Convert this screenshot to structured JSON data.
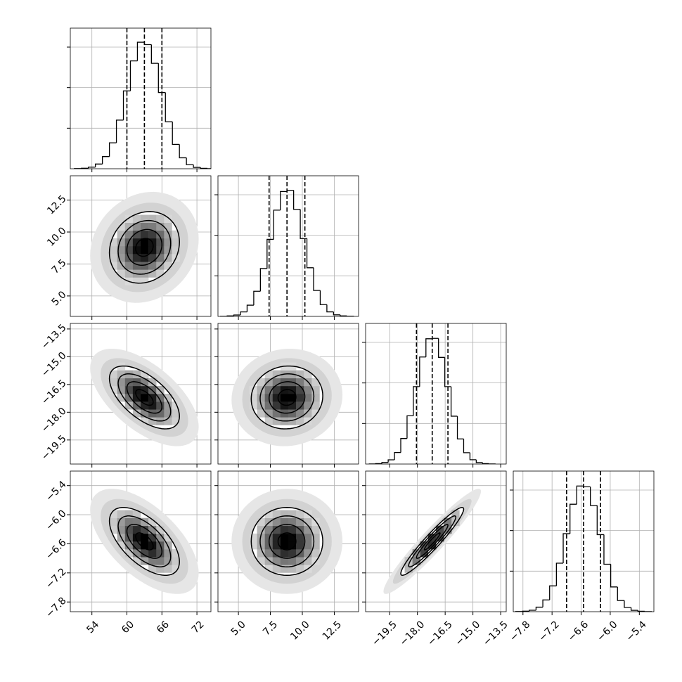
{
  "chart_data": {
    "type": "corner",
    "grid": true,
    "contour_levels": [
      0.5,
      1,
      1.5,
      2
    ],
    "hist_ylim": [
      0,
      1734
    ],
    "hist_yticks": [
      500,
      1000,
      1500
    ],
    "parameters": [
      {
        "range": [
          50.3,
          74.4
        ],
        "ticks": [
          54,
          60,
          66,
          72
        ],
        "mean": 63,
        "sigma": 3,
        "bins": [
          51,
          52.2,
          53.4,
          54.6,
          55.8,
          57,
          58.2,
          59.4,
          60.6,
          61.8,
          63,
          64.2,
          65.4,
          66.6,
          67.8,
          69,
          70.2,
          71.4,
          72.6,
          73.8,
          75
        ],
        "counts": [
          2,
          6,
          20,
          58,
          150,
          320,
          600,
          960,
          1330,
          1560,
          1530,
          1300,
          940,
          580,
          300,
          135,
          50,
          17,
          5,
          1
        ],
        "quantiles": [
          60,
          63,
          66
        ]
      },
      {
        "range": [
          3.4,
          14.4
        ],
        "ticks": [
          {
            "value": 5,
            "label": "5.0"
          },
          7.5,
          {
            "value": 10,
            "label": "10.0"
          },
          12.5
        ],
        "mean": 8.8,
        "sigma": 1.4,
        "bins": [
          3.6,
          4.12,
          4.64,
          5.16,
          5.68,
          6.2,
          6.72,
          7.24,
          7.76,
          8.28,
          8.8,
          9.32,
          9.84,
          10.36,
          10.88,
          11.4,
          11.92,
          12.44,
          12.96,
          13.48,
          14.0
        ],
        "counts": [
          1,
          6,
          17,
          55,
          138,
          310,
          590,
          950,
          1310,
          1540,
          1555,
          1320,
          960,
          600,
          320,
          145,
          56,
          19,
          6,
          2
        ],
        "quantiles": [
          7.4,
          8.8,
          10.2
        ]
      },
      {
        "range": [
          -20.8,
          -13.2
        ],
        "ticks": [
          {
            "value": -19.5,
            "label": "−19.5"
          },
          {
            "value": -18,
            "label": "−18.0"
          },
          {
            "value": -16.5,
            "label": "−16.5"
          },
          {
            "value": -15,
            "label": "−15.0"
          },
          {
            "value": -13.5,
            "label": "−13.5"
          }
        ],
        "mean": -17.2,
        "sigma": 0.85,
        "bins": [
          -20.6,
          -20.26,
          -19.92,
          -19.58,
          -19.24,
          -18.9,
          -18.56,
          -18.22,
          -17.88,
          -17.54,
          -17.2,
          -16.86,
          -16.52,
          -16.18,
          -15.84,
          -15.5,
          -15.16,
          -14.82,
          -14.48,
          -14.14,
          -13.8
        ],
        "counts": [
          1,
          5,
          19,
          52,
          142,
          315,
          595,
          955,
          1320,
          1545,
          1550,
          1315,
          955,
          590,
          310,
          140,
          53,
          18,
          5,
          1
        ],
        "quantiles": [
          -18.05,
          -17.2,
          -16.35
        ]
      },
      {
        "range": [
          -8.0,
          -5.1
        ],
        "ticks": [
          {
            "value": -7.8,
            "label": "−7.8"
          },
          {
            "value": -7.2,
            "label": "−7.2"
          },
          {
            "value": -6.6,
            "label": "−6.6"
          },
          {
            "value": -6.0,
            "label": "−6.0"
          },
          {
            "value": -5.4,
            "label": "−5.4"
          }
        ],
        "mean": -6.55,
        "sigma": 0.35,
        "bins": [
          -7.95,
          -7.81,
          -7.67,
          -7.53,
          -7.39,
          -7.25,
          -7.11,
          -6.97,
          -6.83,
          -6.69,
          -6.55,
          -6.41,
          -6.27,
          -6.13,
          -5.99,
          -5.85,
          -5.71,
          -5.57,
          -5.43,
          -5.29,
          -5.15
        ],
        "counts": [
          2,
          6,
          18,
          56,
          145,
          318,
          598,
          962,
          1325,
          1550,
          1540,
          1310,
          950,
          585,
          305,
          138,
          52,
          17,
          5,
          1
        ],
        "quantiles": [
          -6.9,
          -6.55,
          -6.2
        ]
      }
    ],
    "correlations": [
      [
        0.15
      ],
      [
        -0.6,
        0.05
      ],
      [
        -0.6,
        0.0,
        0.95
      ]
    ]
  }
}
